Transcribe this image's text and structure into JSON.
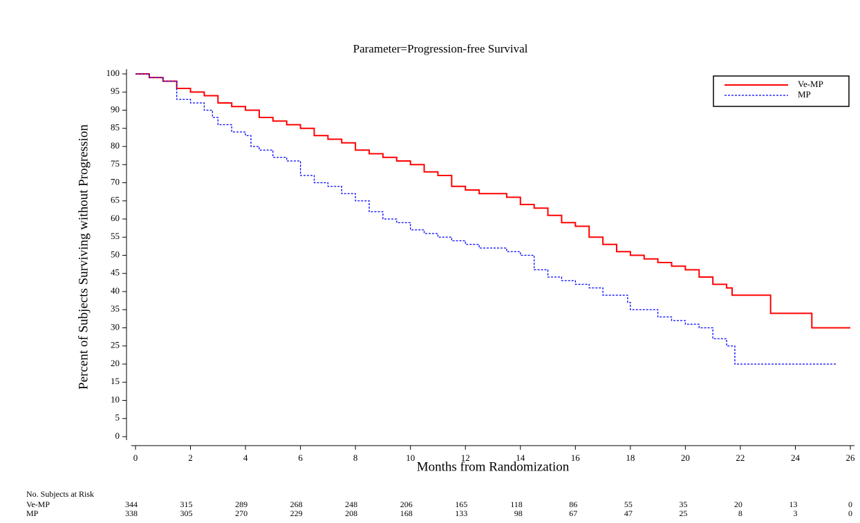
{
  "chart_data": {
    "type": "line",
    "step": true,
    "title": "Parameter=Progression-free Survival",
    "xlabel": "Months from Randomization",
    "ylabel": "Percent of Subjects Surviving without Progression",
    "xlim": [
      0,
      26
    ],
    "xticks": [
      0,
      2,
      4,
      6,
      8,
      10,
      12,
      14,
      16,
      18,
      20,
      22,
      24,
      26
    ],
    "ylim": [
      0,
      100
    ],
    "yticks": [
      0,
      5,
      10,
      15,
      20,
      25,
      30,
      35,
      40,
      45,
      50,
      55,
      60,
      65,
      70,
      75,
      80,
      85,
      90,
      95,
      100
    ],
    "legend": "upper right",
    "series": [
      {
        "name": "Ve-MP",
        "color": "#ff0000",
        "linestyle": "solid",
        "x": [
          0,
          0.5,
          1,
          1.5,
          2,
          2.5,
          3,
          3.5,
          4,
          4.5,
          5,
          5.5,
          6,
          6.5,
          7,
          7.5,
          8,
          8.5,
          9,
          9.5,
          10,
          10.5,
          11,
          11.5,
          12,
          12.5,
          13.5,
          14,
          14.5,
          15,
          15.5,
          16,
          16.5,
          17,
          17.5,
          18,
          18.5,
          19,
          19.5,
          20,
          20.5,
          21,
          21.5,
          21.7,
          23.1,
          24.6,
          26
        ],
        "values": [
          100,
          99,
          98,
          96,
          95,
          94,
          92,
          91,
          90,
          88,
          87,
          86,
          85,
          83,
          82,
          81,
          79,
          78,
          77,
          76,
          75,
          73,
          72,
          69,
          68,
          67,
          66,
          64,
          63,
          61,
          59,
          58,
          55,
          53,
          51,
          50,
          49,
          48,
          47,
          46,
          44,
          42,
          41,
          39,
          34,
          30,
          30
        ]
      },
      {
        "name": "MP",
        "color": "#0000ff",
        "linestyle": "dashed",
        "x": [
          0,
          0.5,
          1,
          1.5,
          2,
          2.5,
          2.8,
          3,
          3.5,
          4,
          4.2,
          4.5,
          5,
          5.5,
          6,
          6.5,
          7,
          7.5,
          8,
          8.5,
          9,
          9.5,
          10,
          10.5,
          11,
          11.5,
          12,
          12.5,
          13.5,
          14,
          14.5,
          15,
          15.5,
          16,
          16.5,
          17,
          17.9,
          18,
          19,
          19.5,
          20,
          20.5,
          21,
          21.5,
          21.8,
          25.5
        ],
        "values": [
          100,
          99,
          98,
          93,
          92,
          90,
          88,
          86,
          84,
          83,
          80,
          79,
          77,
          76,
          72,
          70,
          69,
          67,
          65,
          62,
          60,
          59,
          57,
          56,
          55,
          54,
          53,
          52,
          51,
          50,
          46,
          44,
          43,
          42,
          41,
          39,
          37,
          35,
          33,
          32,
          31,
          30,
          27,
          25,
          20,
          20
        ]
      }
    ],
    "at_risk": {
      "title": "No. Subjects at Risk",
      "rows": [
        {
          "label": "Ve-MP",
          "values": [
            344,
            315,
            289,
            268,
            248,
            206,
            165,
            118,
            86,
            55,
            35,
            20,
            13,
            0
          ]
        },
        {
          "label": "MP",
          "values": [
            338,
            305,
            270,
            229,
            208,
            168,
            133,
            98,
            67,
            47,
            25,
            8,
            3,
            0
          ]
        }
      ]
    }
  }
}
